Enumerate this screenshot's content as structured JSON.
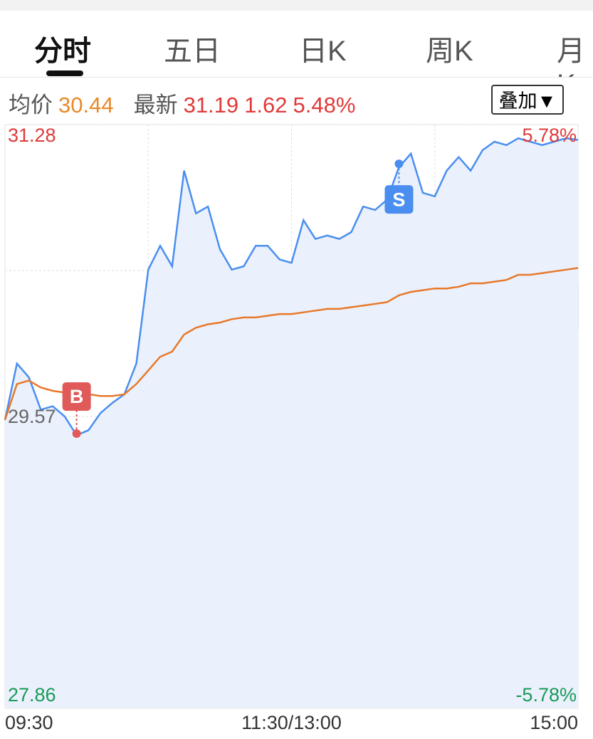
{
  "tabs": [
    "分时",
    "五日",
    "日K",
    "周K",
    "月K"
  ],
  "header": {
    "avg_label": "均价",
    "avg_value": "30.44",
    "latest_label": "最新",
    "latest_value": "31.19",
    "change": "1.62",
    "change_pct": "5.48%",
    "overlay_button": "叠加▼"
  },
  "chart_data": {
    "type": "line",
    "x": [
      0,
      5,
      10,
      15,
      20,
      25,
      30,
      35,
      40,
      45,
      50,
      55,
      60,
      65,
      70,
      75,
      80,
      85,
      90,
      95,
      100,
      105,
      110,
      115,
      120,
      125,
      130,
      135,
      140,
      145,
      150,
      155,
      160,
      165,
      170,
      175,
      180,
      185,
      190,
      195,
      200,
      205,
      210,
      215,
      220,
      225,
      230,
      235,
      240
    ],
    "series": [
      {
        "name": "price",
        "color": "#4a8ef0",
        "values": [
          29.55,
          29.88,
          29.8,
          29.61,
          29.63,
          29.57,
          29.46,
          29.49,
          29.59,
          29.65,
          29.7,
          29.88,
          30.43,
          30.57,
          30.45,
          31.01,
          30.76,
          30.8,
          30.55,
          30.43,
          30.45,
          30.57,
          30.57,
          30.49,
          30.47,
          30.72,
          30.61,
          30.63,
          30.61,
          30.65,
          30.8,
          30.78,
          30.84,
          31.03,
          31.11,
          30.88,
          30.86,
          31.01,
          31.09,
          31.01,
          31.13,
          31.18,
          31.16,
          31.2,
          31.18,
          31.16,
          31.18,
          31.2,
          31.19
        ]
      },
      {
        "name": "average",
        "color": "#e8782a",
        "values": [
          29.55,
          29.76,
          29.78,
          29.74,
          29.72,
          29.71,
          29.7,
          29.7,
          29.69,
          29.69,
          29.7,
          29.76,
          29.84,
          29.92,
          29.95,
          30.05,
          30.09,
          30.11,
          30.12,
          30.14,
          30.15,
          30.15,
          30.16,
          30.17,
          30.17,
          30.18,
          30.19,
          30.2,
          30.2,
          30.21,
          30.22,
          30.23,
          30.24,
          30.28,
          30.3,
          30.31,
          30.32,
          30.32,
          30.33,
          30.35,
          30.35,
          30.36,
          30.37,
          30.4,
          30.4,
          30.41,
          30.42,
          30.43,
          30.44
        ]
      }
    ],
    "xlim": [
      0,
      240
    ],
    "xticks": [
      {
        "value": 0,
        "label": "09:30"
      },
      {
        "value": 120,
        "label": "11:30/13:00"
      },
      {
        "value": 240,
        "label": "15:00"
      }
    ],
    "ylim": [
      27.86,
      31.28
    ],
    "yticks": [
      31.28,
      29.57,
      27.86
    ],
    "y2lim": [
      -5.78,
      5.78
    ],
    "y2ticks": [
      {
        "value": 5.78,
        "label": "5.78%"
      },
      {
        "value": -5.78,
        "label": "-5.78%"
      }
    ],
    "grid": true,
    "trade_marks": [
      {
        "label": "B",
        "x": 30,
        "value": 29.47,
        "color": "#e05a5a"
      },
      {
        "label": "S",
        "x": 165,
        "value": 31.05,
        "color": "#4a8ef0"
      }
    ]
  }
}
